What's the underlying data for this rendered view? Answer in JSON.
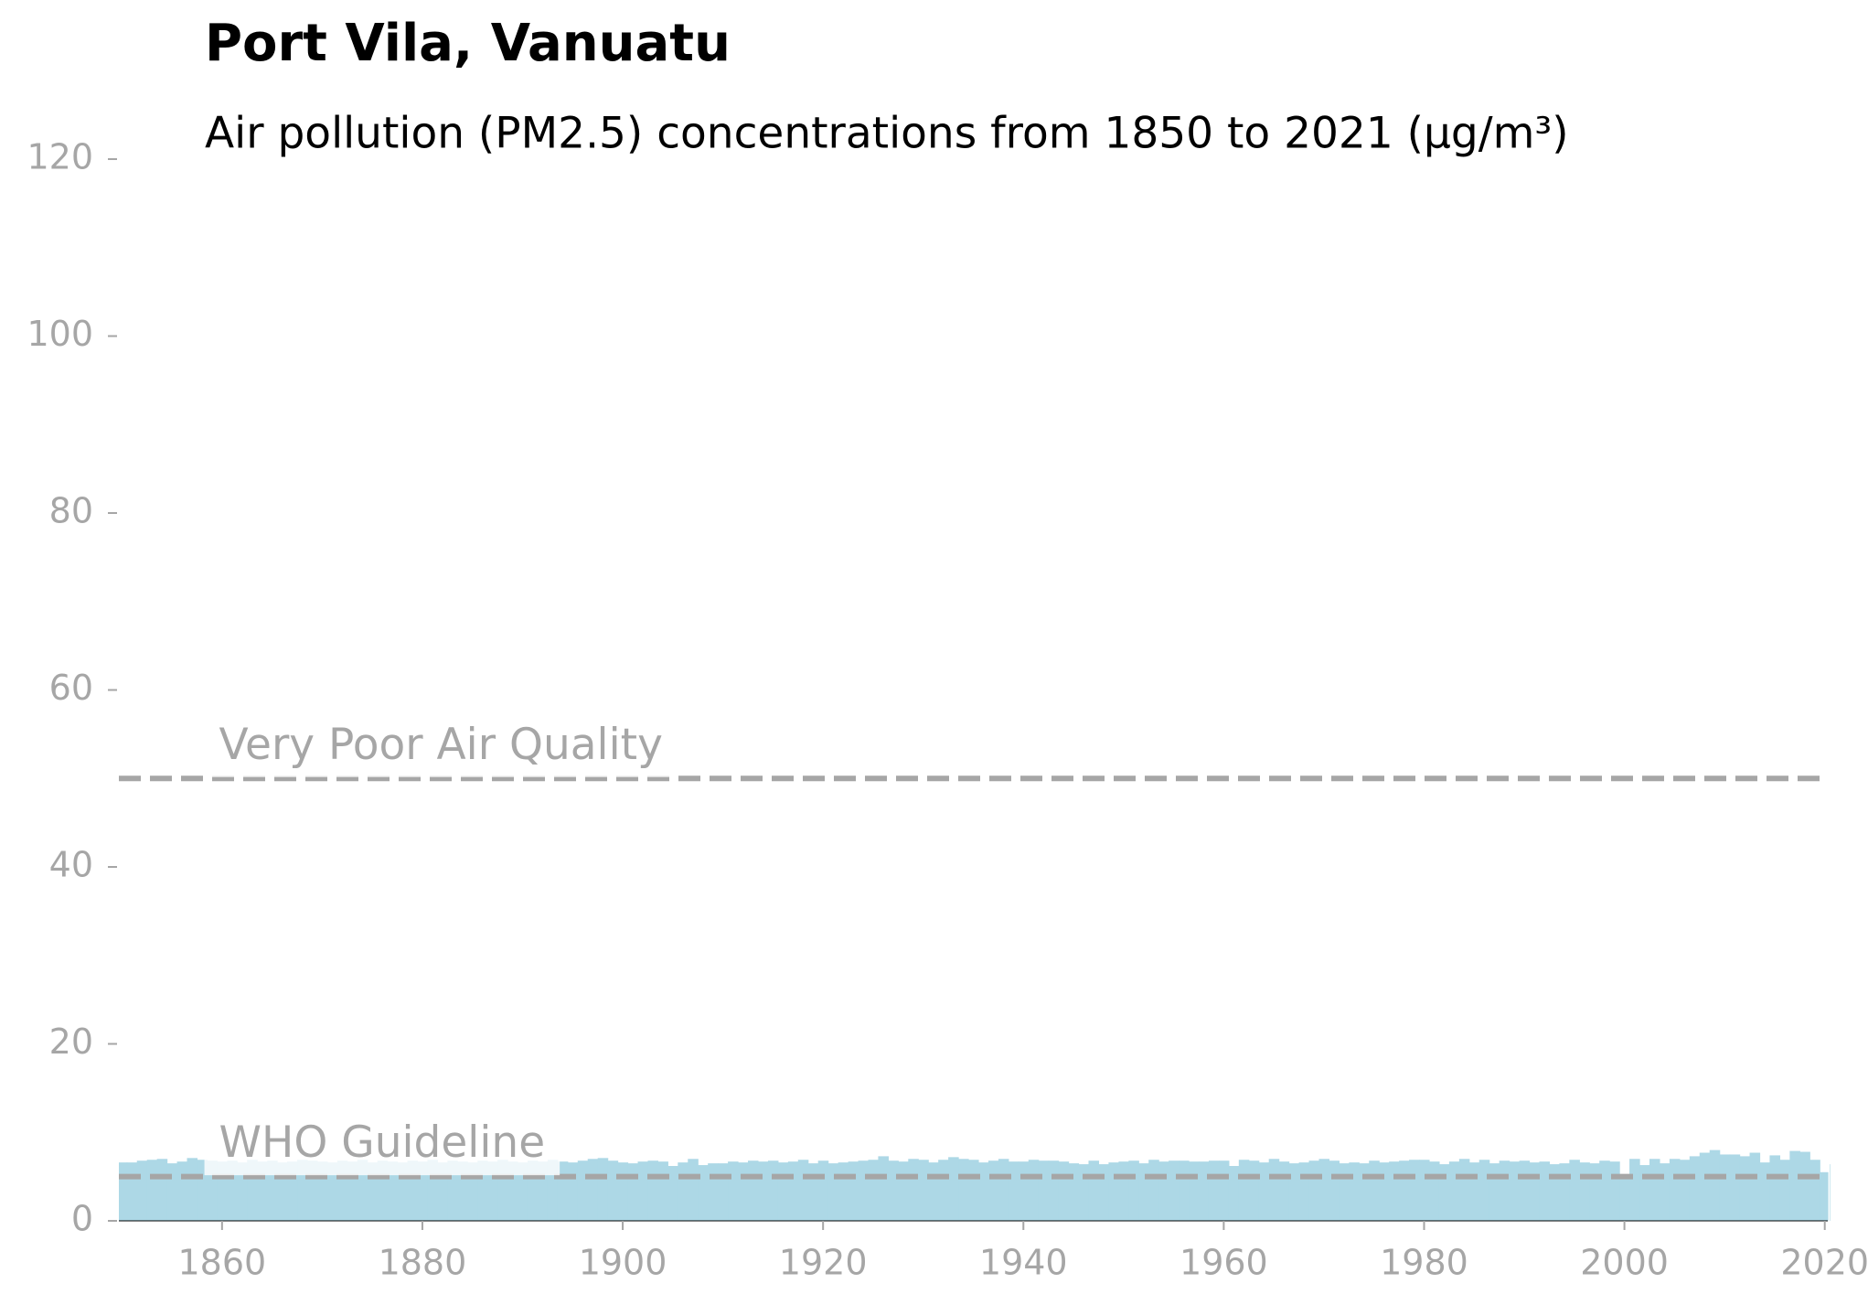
{
  "chart_data": {
    "type": "bar",
    "title": "Port Vila, Vanuatu",
    "subtitle": "Air pollution (PM2.5) concentrations from 1850 to 2021 (µg/m³)",
    "x_start": 1850,
    "values": [
      6.6,
      6.6,
      6.8,
      6.9,
      7.0,
      6.5,
      6.7,
      7.1,
      6.9,
      6.8,
      6.7,
      6.8,
      6.6,
      6.9,
      6.7,
      6.8,
      6.6,
      6.7,
      6.9,
      6.8,
      6.7,
      6.6,
      6.8,
      6.7,
      6.9,
      6.6,
      6.8,
      6.7,
      6.6,
      6.8,
      6.7,
      6.9,
      6.6,
      6.8,
      6.7,
      6.6,
      6.8,
      6.7,
      6.9,
      6.7,
      6.6,
      6.8,
      6.7,
      6.9,
      6.7,
      6.6,
      6.8,
      7.0,
      7.1,
      6.8,
      6.6,
      6.5,
      6.7,
      6.8,
      6.7,
      6.2,
      6.6,
      7.0,
      6.3,
      6.5,
      6.5,
      6.7,
      6.6,
      6.8,
      6.7,
      6.8,
      6.6,
      6.7,
      6.9,
      6.5,
      6.8,
      6.5,
      6.6,
      6.7,
      6.8,
      6.9,
      7.3,
      6.8,
      6.7,
      7.0,
      6.9,
      6.6,
      6.9,
      7.2,
      7.0,
      6.9,
      6.6,
      6.8,
      7.0,
      6.7,
      6.7,
      6.9,
      6.8,
      6.8,
      6.7,
      6.5,
      6.4,
      6.8,
      6.4,
      6.6,
      6.7,
      6.8,
      6.5,
      6.9,
      6.7,
      6.8,
      6.8,
      6.7,
      6.7,
      6.8,
      6.8,
      6.2,
      6.9,
      6.8,
      6.6,
      7.0,
      6.7,
      6.5,
      6.6,
      6.8,
      7.0,
      6.8,
      6.5,
      6.6,
      6.5,
      6.8,
      6.6,
      6.7,
      6.8,
      6.9,
      6.9,
      6.7,
      6.4,
      6.7,
      7.0,
      6.6,
      6.9,
      6.5,
      6.8,
      6.7,
      6.8,
      6.6,
      6.7,
      6.4,
      6.5,
      6.9,
      6.6,
      6.5,
      6.8,
      6.7,
      5.2,
      7.0,
      6.3,
      7.0,
      6.5,
      7.0,
      6.9,
      7.3,
      7.7,
      8.0,
      7.5,
      7.5,
      7.3,
      7.7,
      6.6,
      7.4,
      6.9,
      7.9,
      7.8,
      6.9,
      5.5,
      6.4
    ],
    "color": "#add8e6",
    "xlim": [
      1849.7,
      2020.3
    ],
    "xticks": [
      1860,
      1880,
      1900,
      1920,
      1940,
      1960,
      1980,
      2000,
      2020
    ],
    "ylim": [
      0,
      120
    ],
    "yticks": [
      0,
      20,
      40,
      60,
      80,
      100,
      120
    ],
    "reference_lines": [
      {
        "value": 5,
        "label": "WHO Guideline",
        "color": "#a6a6a6"
      },
      {
        "value": 50,
        "label": "Very Poor Air Quality",
        "color": "#a6a6a6"
      }
    ]
  }
}
